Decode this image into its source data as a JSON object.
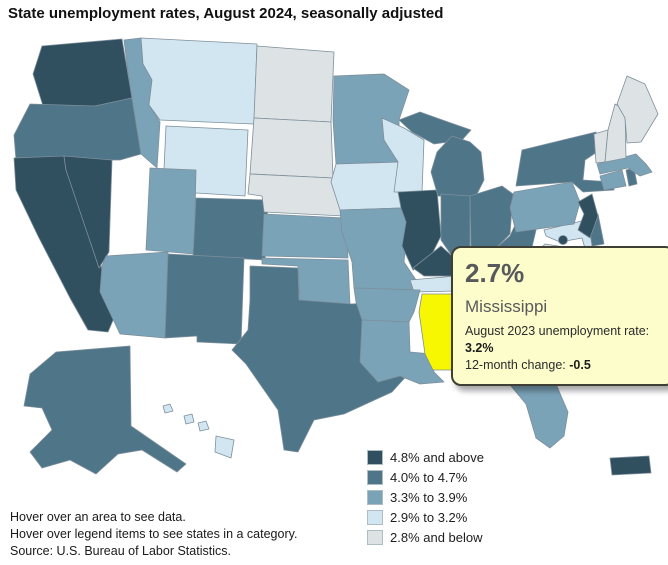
{
  "title": "State unemployment rates, August 2024, seasonally adjusted",
  "tooltip": {
    "value": "2.7%",
    "state": "Mississippi",
    "prev_label": "August 2023 unemployment rate:",
    "prev_value": "3.2%",
    "change_label": "12-month change:",
    "change_value": "-0.5"
  },
  "legend": {
    "items": [
      {
        "label": "4.8% and above",
        "color": "#304f5f"
      },
      {
        "label": "4.0% to 4.7%",
        "color": "#4f7589"
      },
      {
        "label": "3.3% to 3.9%",
        "color": "#7ba3b8"
      },
      {
        "label": "2.9% to 3.2%",
        "color": "#d2e6f1"
      },
      {
        "label": "2.8% and below",
        "color": "#dde2e4"
      }
    ]
  },
  "map": {
    "highlight_color": "#f7f701",
    "border_color": "#7d8f9b",
    "states": [
      {
        "id": "WA",
        "name": "Washington",
        "category": 0
      },
      {
        "id": "OR",
        "name": "Oregon",
        "category": 1
      },
      {
        "id": "CA",
        "name": "California",
        "category": 0
      },
      {
        "id": "NV",
        "name": "Nevada",
        "category": 0
      },
      {
        "id": "ID",
        "name": "Idaho",
        "category": 2
      },
      {
        "id": "MT",
        "name": "Montana",
        "category": 3
      },
      {
        "id": "WY",
        "name": "Wyoming",
        "category": 3
      },
      {
        "id": "UT",
        "name": "Utah",
        "category": 2
      },
      {
        "id": "CO",
        "name": "Colorado",
        "category": 1
      },
      {
        "id": "AZ",
        "name": "Arizona",
        "category": 2
      },
      {
        "id": "NM",
        "name": "New Mexico",
        "category": 1
      },
      {
        "id": "ND",
        "name": "North Dakota",
        "category": 4
      },
      {
        "id": "SD",
        "name": "South Dakota",
        "category": 4
      },
      {
        "id": "NE",
        "name": "Nebraska",
        "category": 4
      },
      {
        "id": "KS",
        "name": "Kansas",
        "category": 2
      },
      {
        "id": "OK",
        "name": "Oklahoma",
        "category": 2
      },
      {
        "id": "TX",
        "name": "Texas",
        "category": 1
      },
      {
        "id": "MN",
        "name": "Minnesota",
        "category": 2
      },
      {
        "id": "IA",
        "name": "Iowa",
        "category": 3
      },
      {
        "id": "MO",
        "name": "Missouri",
        "category": 2
      },
      {
        "id": "WI",
        "name": "Wisconsin",
        "category": 3
      },
      {
        "id": "IL",
        "name": "Illinois",
        "category": 0
      },
      {
        "id": "MI",
        "name": "Michigan",
        "category": 1
      },
      {
        "id": "IN",
        "name": "Indiana",
        "category": 1
      },
      {
        "id": "OH",
        "name": "Ohio",
        "category": 1
      },
      {
        "id": "KY",
        "name": "Kentucky",
        "category": 0
      },
      {
        "id": "TN",
        "name": "Tennessee",
        "category": 3
      },
      {
        "id": "AR",
        "name": "Arkansas",
        "category": 2
      },
      {
        "id": "LA",
        "name": "Louisiana",
        "category": 2
      },
      {
        "id": "MS",
        "name": "Mississippi",
        "category": 4,
        "highlighted": true
      },
      {
        "id": "AL",
        "name": "Alabama",
        "category": 3
      },
      {
        "id": "GA",
        "name": "Georgia",
        "category": 2
      },
      {
        "id": "FL",
        "name": "Florida",
        "category": 2
      },
      {
        "id": "SC",
        "name": "South Carolina",
        "category": 1
      },
      {
        "id": "NC",
        "name": "North Carolina",
        "category": 2
      },
      {
        "id": "VA",
        "name": "Virginia",
        "category": 4
      },
      {
        "id": "WV",
        "name": "West Virginia",
        "category": 1
      },
      {
        "id": "MD",
        "name": "Maryland",
        "category": 3
      },
      {
        "id": "DE",
        "name": "Delaware",
        "category": 1
      },
      {
        "id": "DC",
        "name": "District of Columbia",
        "category": 0
      },
      {
        "id": "PA",
        "name": "Pennsylvania",
        "category": 2
      },
      {
        "id": "NJ",
        "name": "New Jersey",
        "category": 0
      },
      {
        "id": "NY",
        "name": "New York",
        "category": 1
      },
      {
        "id": "CT",
        "name": "Connecticut",
        "category": 2
      },
      {
        "id": "RI",
        "name": "Rhode Island",
        "category": 1
      },
      {
        "id": "MA",
        "name": "Massachusetts",
        "category": 2
      },
      {
        "id": "VT",
        "name": "Vermont",
        "category": 4
      },
      {
        "id": "NH",
        "name": "New Hampshire",
        "category": 4
      },
      {
        "id": "ME",
        "name": "Maine",
        "category": 4
      },
      {
        "id": "AK",
        "name": "Alaska",
        "category": 1
      },
      {
        "id": "HI",
        "name": "Hawaii",
        "category": 3
      },
      {
        "id": "PR",
        "name": "Puerto Rico",
        "category": 0
      }
    ]
  },
  "footer": {
    "lines": [
      "Hover over an area to see data.",
      "Hover over legend items to see states in a category.",
      "Source: U.S. Bureau of Labor Statistics."
    ]
  }
}
